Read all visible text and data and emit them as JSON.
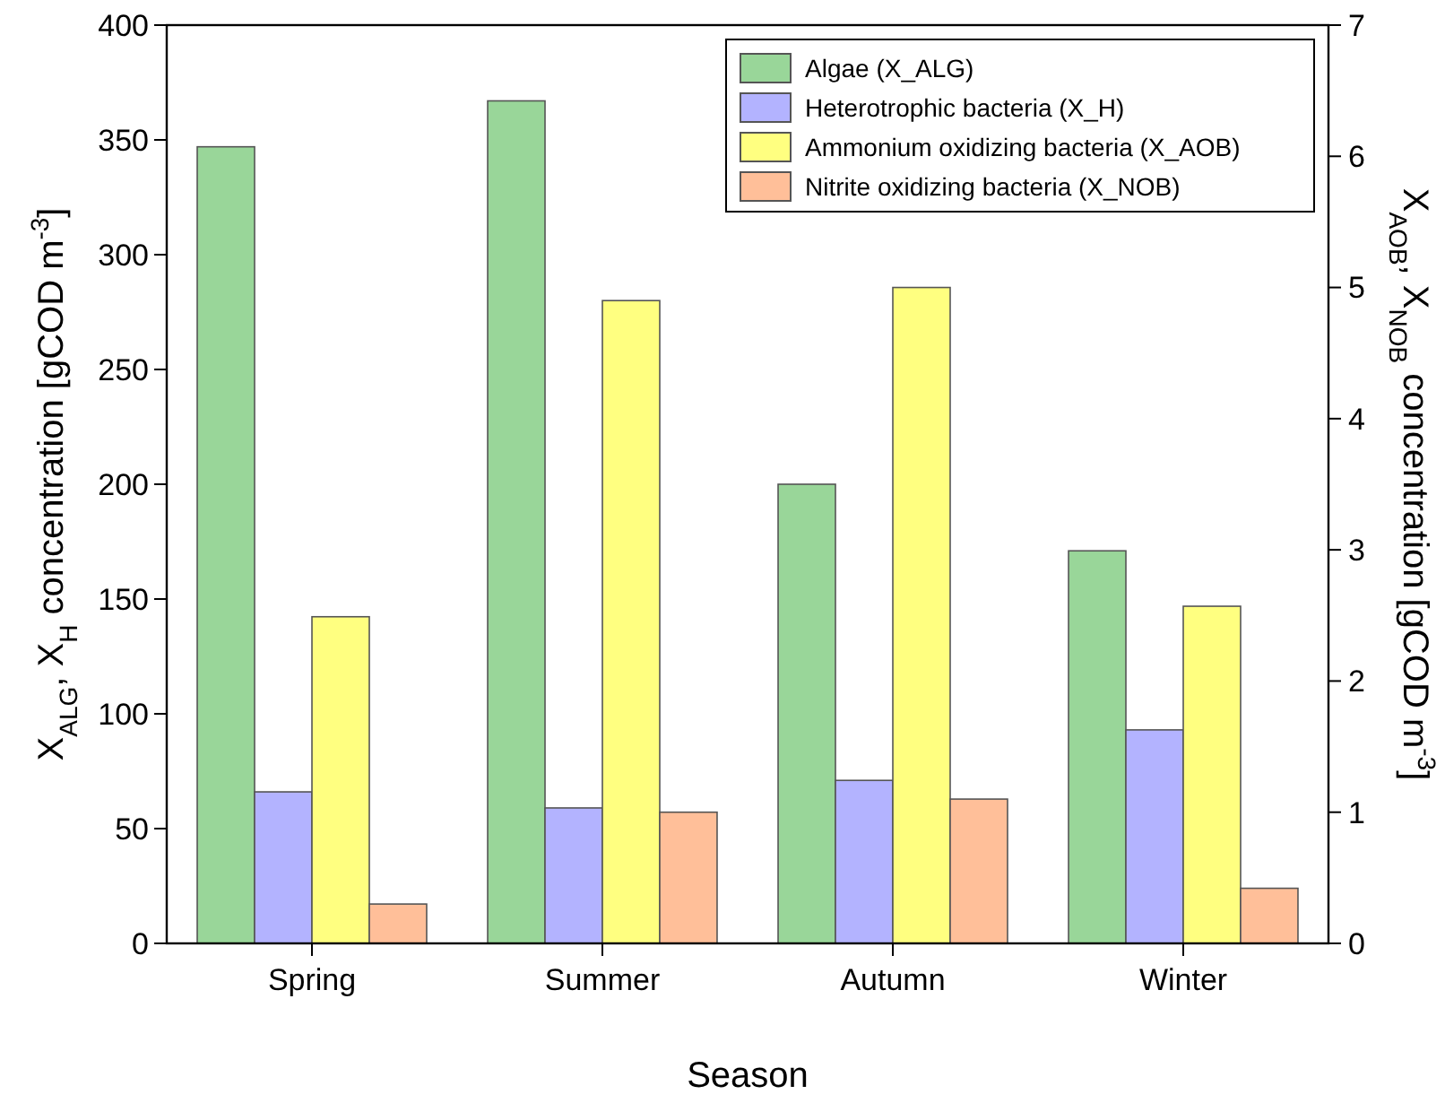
{
  "chart_data": {
    "type": "bar",
    "xlabel": "Season",
    "ylabel": "X$_{ALG}$, X$_{H}$ concentration [gCOD m$^{-3}$]",
    "y2label": "X$_{AOB}$, X$_{NOB}$ concentration [gCOD m$^{-3}$]",
    "categories": [
      "Spring",
      "Summer",
      "Autumn",
      "Winter"
    ],
    "series": [
      {
        "name": "Algae (X_ALG)",
        "color": "#99d699",
        "values": [
          347,
          367,
          200,
          171
        ]
      },
      {
        "name": "Heterotrophic bacteria (X_H)",
        "color": "#b3b3ff",
        "values": [
          66,
          59,
          71,
          93
        ]
      },
      {
        "name": "Ammonium oxidizing bacteria (X_AOB)",
        "color": "#ffff80",
        "axis": "y2",
        "values": [
          2.49,
          4.9,
          5.0,
          2.57
        ]
      },
      {
        "name": "Nitrite oxidizing bacteria (X_NOB)",
        "color": "#ffbf99",
        "axis": "y2",
        "values": [
          0.3,
          1.0,
          1.1,
          0.42
        ]
      }
    ],
    "ylim": [
      0,
      400
    ],
    "yticks": [
      0,
      50,
      100,
      150,
      200,
      250,
      300,
      350,
      400
    ],
    "y2lim": [
      0,
      7
    ],
    "y2ticks": [
      0,
      1,
      2,
      3,
      4,
      5,
      6,
      7
    ],
    "grid": false,
    "legend": "top right"
  }
}
